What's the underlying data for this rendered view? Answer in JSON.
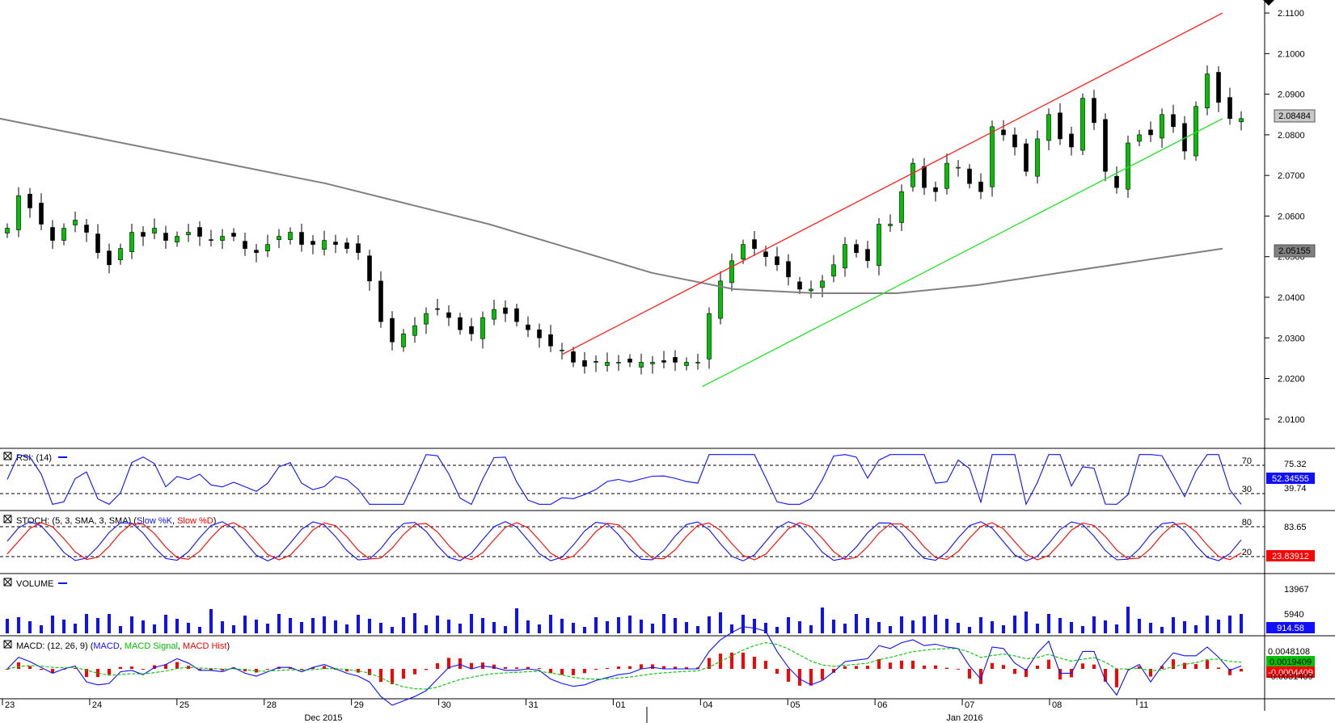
{
  "chart_data": {
    "type": "candlestick",
    "instrument_note": "",
    "price_axis": {
      "ticks": [
        "2.0100",
        "2.0200",
        "2.0300",
        "2.0400",
        "2.0500",
        "2.0600",
        "2.0700",
        "2.0800",
        "2.0900",
        "2.1000",
        "2.1100"
      ],
      "ylim": [
        2.0028,
        2.1132
      ],
      "last_price_label": "2.08484",
      "last_price": 2.08484,
      "sma_label": "2.05155",
      "sma_value": 2.05155
    },
    "x_axis": {
      "day_labels": [
        "23",
        "24",
        "25",
        "28",
        "29",
        "30",
        "31",
        "01",
        "04",
        "05",
        "06",
        "07",
        "08",
        "11"
      ],
      "month_labels": [
        "Dec 2015",
        "Jan 2016"
      ]
    },
    "price_series": [
      2.057,
      2.065,
      2.062,
      2.058,
      2.054,
      2.057,
      2.059,
      2.056,
      2.051,
      2.048,
      2.052,
      2.056,
      2.055,
      2.057,
      2.054,
      2.055,
      2.056,
      2.055,
      2.054,
      2.055,
      2.055,
      2.052,
      2.051,
      2.053,
      2.055,
      2.056,
      2.053,
      2.053,
      2.054,
      2.053,
      2.052,
      2.051,
      2.044,
      2.034,
      2.029,
      2.031,
      2.033,
      2.036,
      2.037,
      2.035,
      2.032,
      2.031,
      2.035,
      2.037,
      2.036,
      2.034,
      2.032,
      2.03,
      2.028,
      2.027,
      2.024,
      2.023,
      2.024,
      2.024,
      2.024,
      2.024,
      2.024,
      2.024,
      2.024,
      2.024,
      2.024,
      2.024,
      2.036,
      2.044,
      2.049,
      2.053,
      2.052,
      2.05,
      2.048,
      2.045,
      2.042,
      2.042,
      2.044,
      2.048,
      2.053,
      2.051,
      2.049,
      2.058,
      2.058,
      2.066,
      2.073,
      2.067,
      2.066,
      2.073,
      2.072,
      2.068,
      2.066,
      2.082,
      2.08,
      2.077,
      2.071,
      2.079,
      2.085,
      2.079,
      2.077,
      2.089,
      2.083,
      2.071,
      2.067,
      2.078,
      2.08,
      2.08,
      2.085,
      2.082,
      2.076,
      2.087,
      2.095,
      2.088,
      2.084,
      2.084
    ],
    "channel": {
      "upper": {
        "color": "#ff2020",
        "from": [
          0.445,
          2.026
        ],
        "to": [
          1.0,
          2.11
        ]
      },
      "lower": {
        "color": "#20e020",
        "from": [
          0.564,
          2.018
        ],
        "to": [
          1.0,
          2.084
        ]
      }
    },
    "sma_curve": {
      "color": "#808080",
      "values": [
        2.084,
        2.08,
        2.076,
        2.072,
        2.068,
        2.063,
        2.058,
        2.052,
        2.046,
        2.042,
        2.041,
        2.041,
        2.043,
        2.046,
        2.049,
        2.052
      ]
    },
    "rsi": {
      "label": "RSI: (14)",
      "levels": [
        "70",
        "30"
      ],
      "scale_labels": [
        "75.32",
        "39.74"
      ],
      "last_label": "52.34555",
      "last": 52.34555
    },
    "stoch": {
      "label": "STOCH: (5, 3, SMA, 3, SMA)",
      "k_label": "Slow %K",
      "d_label": "Slow %D",
      "levels": [
        "80",
        "20"
      ],
      "scale_labels": [
        "83.65"
      ],
      "last_label": "23.83912",
      "last": 23.83912
    },
    "volume": {
      "label": "VOLUME",
      "scale_labels": [
        "13967",
        "5940"
      ],
      "last_label": "914.58",
      "last": 914.58
    },
    "macd": {
      "label": "MACD: (12, 26, 9)",
      "macd_label": "MACD",
      "signal_label": "MACD Signal",
      "hist_label": "MACD Hist",
      "scale_labels": [
        "0.0048108",
        "-0.0031409"
      ],
      "signal_last_label": "0.0019409",
      "signal_last": 0.0019409,
      "hist_last_label": "-0.0004409",
      "hist_last": -0.0004409
    },
    "colors": {
      "up_candle": "#00c000",
      "down_candle": "#000000",
      "wick": "#000000",
      "rsi_line": "#1010ff",
      "stoch_k": "#1010ff",
      "stoch_d": "#ff0000",
      "volume_bar": "#1010ff",
      "macd_line": "#1010ff",
      "signal_line": "#00c000",
      "hist": "#ff0000",
      "axis_box": "#c0c0c0"
    }
  }
}
